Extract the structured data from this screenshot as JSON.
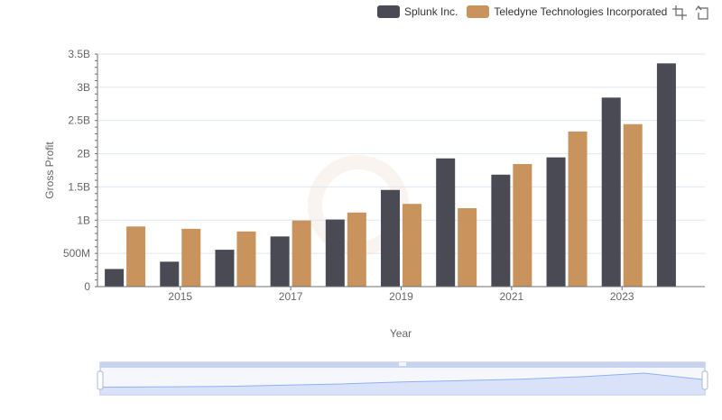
{
  "chart_data": {
    "type": "bar",
    "xlabel": "Year",
    "ylabel": "Gross Profit",
    "categories": [
      "2014",
      "2015",
      "2016",
      "2017",
      "2018",
      "2019",
      "2020",
      "2021",
      "2022",
      "2023",
      "2024"
    ],
    "x_tick_labels": [
      "2015",
      "2017",
      "2019",
      "2021",
      "2023"
    ],
    "y_tick_labels": [
      "0",
      "500M",
      "1B",
      "1.5B",
      "2B",
      "2.5B",
      "3B",
      "3.5B"
    ],
    "ylim": [
      0,
      3500000000
    ],
    "grid": true,
    "legend_position": "top-right",
    "series": [
      {
        "name": "Splunk Inc.",
        "color": "#4a4a55",
        "values": [
          265000000,
          375000000,
          555000000,
          755000000,
          1010000000,
          1455000000,
          1930000000,
          1685000000,
          1945000000,
          2845000000,
          3360000000
        ]
      },
      {
        "name": "Teledyne Technologies Incorporated",
        "color": "#c9935e",
        "values": [
          905000000,
          870000000,
          830000000,
          995000000,
          1115000000,
          1245000000,
          1180000000,
          1845000000,
          2335000000,
          2445000000,
          null
        ]
      }
    ]
  },
  "colors": {
    "grid": "#e0e6f1",
    "axis": "#6e7079",
    "zoom_fill": "#d2dcf6",
    "zoom_border": "#acb8d1"
  },
  "toolbox": {
    "icons": [
      "zoom-icon",
      "restore-icon"
    ]
  }
}
